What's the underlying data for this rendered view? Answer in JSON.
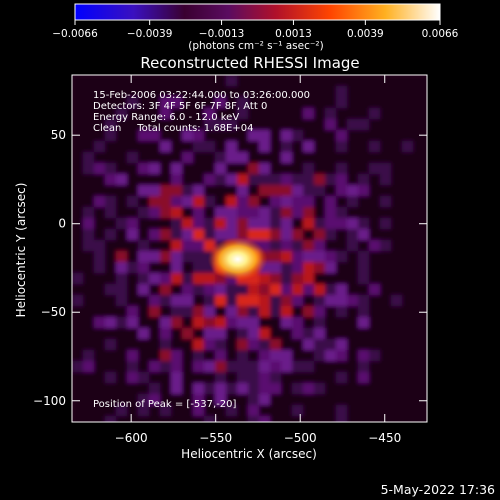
{
  "chart_data": {
    "type": "heatmap",
    "title": "Reconstructed RHESSI Image",
    "xlabel": "Heliocentric X (arcsec)",
    "ylabel": "Heliocentric Y (arcsec)",
    "xlim": [
      -635,
      -425
    ],
    "ylim": [
      -112,
      84
    ],
    "x_ticks": [
      -600,
      -550,
      -500,
      -450
    ],
    "x_tick_labels": [
      "−600",
      "−550",
      "−500",
      "−450"
    ],
    "y_ticks": [
      -100,
      -50,
      0,
      50
    ],
    "y_tick_labels": [
      "−100",
      "−50",
      "0",
      "50"
    ],
    "colorbar": {
      "min": -0.0066,
      "max": 0.0066,
      "ticks": [
        -0.0066,
        -0.0039,
        -0.0013,
        0.0013,
        0.0039,
        0.0066
      ],
      "tick_labels": [
        "−0.0066",
        "−0.0039",
        "−0.0013",
        "0.0013",
        "0.0039",
        "0.0066"
      ],
      "unit_label": "(photons cm⁻² s⁻¹ asec⁻²)",
      "colors": [
        "#0000ff",
        "#4000a0",
        "#200010",
        "#6a0e70",
        "#d91a1a",
        "#ff7a00",
        "#ffd84a",
        "#ffffff"
      ]
    },
    "peak": [
      -537,
      -20
    ],
    "annotations": [
      "15-Feb-2006 03:22:44.000 to 03:26:00.000",
      "Detectors: 3F 4F 5F 6F 7F 8F, Att 0",
      "Energy Range: 6.0 - 12.0 keV",
      "Clean     Total counts: 1.68E+04"
    ],
    "peak_label": "Position of Peak = [-537,-20]"
  },
  "footer": {
    "date": "5-May-2022 17:36"
  }
}
